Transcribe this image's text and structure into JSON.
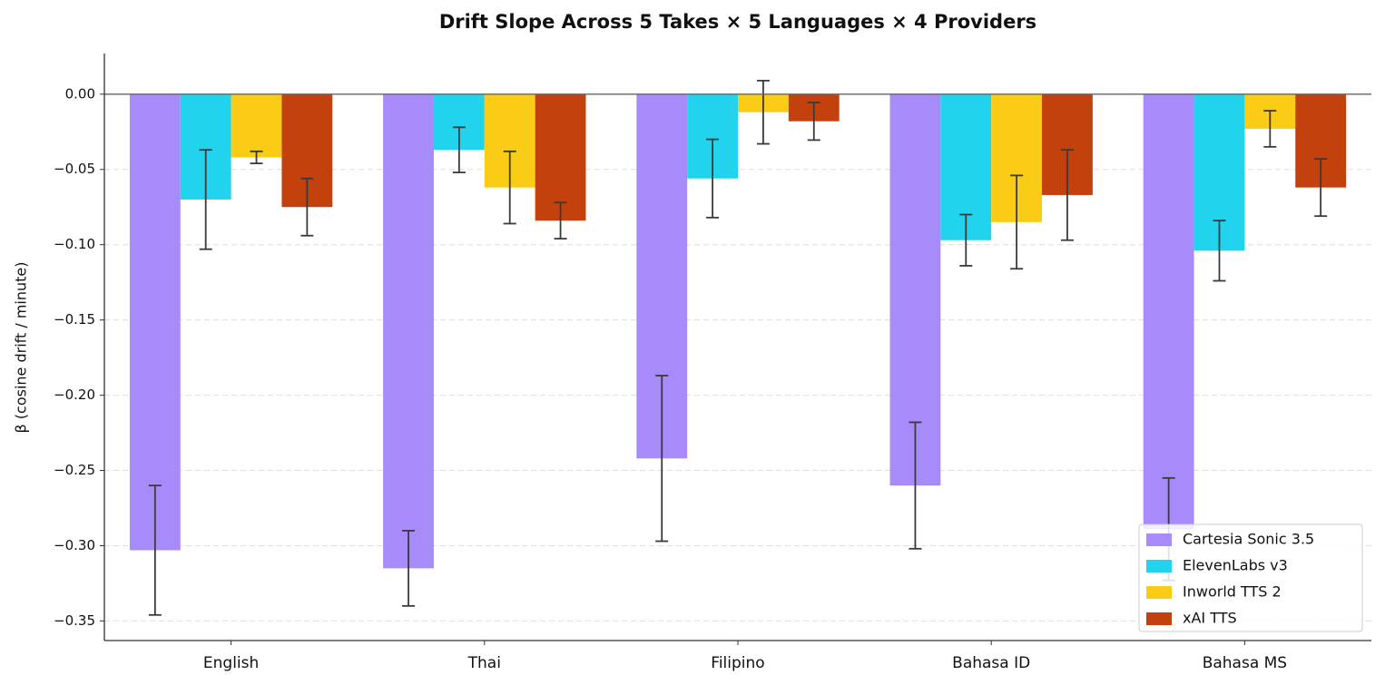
{
  "chart_data": {
    "type": "bar",
    "title": "Drift Slope Across 5 Takes × 5 Languages × 4 Providers",
    "y_label": "β (cosine drift / minute)",
    "categories": [
      "English",
      "Thai",
      "Filipino",
      "Bahasa ID",
      "Bahasa MS"
    ],
    "series": [
      {
        "name": "Cartesia Sonic 3.5",
        "color": "#a78bfa",
        "values": [
          -0.303,
          -0.315,
          -0.242,
          -0.26,
          -0.289
        ],
        "errors": [
          0.043,
          0.025,
          0.055,
          0.042,
          0.034
        ]
      },
      {
        "name": "ElevenLabs v3",
        "color": "#22d3ee",
        "values": [
          -0.07,
          -0.037,
          -0.056,
          -0.097,
          -0.104
        ],
        "errors": [
          0.033,
          0.015,
          0.026,
          0.017,
          0.02
        ]
      },
      {
        "name": "Inworld TTS 2",
        "color": "#facc15",
        "values": [
          -0.042,
          -0.062,
          -0.012,
          -0.085,
          -0.023
        ],
        "errors": [
          0.004,
          0.024,
          0.021,
          0.031,
          0.012
        ]
      },
      {
        "name": "xAI TTS",
        "color": "#c2410c",
        "values": [
          -0.075,
          -0.084,
          -0.018,
          -0.067,
          -0.062
        ],
        "errors": [
          0.019,
          0.012,
          0.0125,
          0.03,
          0.019
        ]
      }
    ],
    "ylim": [
      -0.363,
      0.027
    ],
    "yticks": [
      {
        "value": 0,
        "label": "0.00"
      },
      {
        "value": -0.05,
        "label": "−0.05"
      },
      {
        "value": -0.1,
        "label": "−0.10"
      },
      {
        "value": -0.15,
        "label": "−0.15"
      },
      {
        "value": -0.2,
        "label": "−0.20"
      },
      {
        "value": -0.25,
        "label": "−0.25"
      },
      {
        "value": -0.3,
        "label": "−0.30"
      },
      {
        "value": -0.35,
        "label": "−0.35"
      }
    ],
    "grid": true,
    "legend": "lower right"
  }
}
